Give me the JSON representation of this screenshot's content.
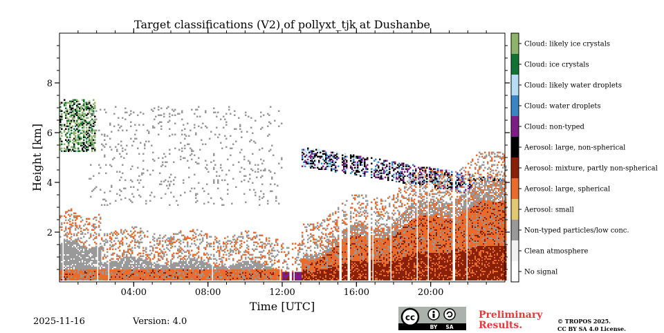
{
  "chart_data": {
    "type": "heatmap",
    "title": "Target classifications (V2) of pollyxt_tjk at Dushanbe",
    "xlabel": "Time [UTC]",
    "ylabel": "Height [km]",
    "xlim_hours": [
      0,
      24
    ],
    "ylim_km": [
      0,
      10
    ],
    "x_ticks": [
      {
        "hour": 4,
        "label": "04:00"
      },
      {
        "hour": 8,
        "label": "08:00"
      },
      {
        "hour": 12,
        "label": "12:00"
      },
      {
        "hour": 16,
        "label": "16:00"
      },
      {
        "hour": 20,
        "label": "20:00"
      }
    ],
    "y_ticks": [
      {
        "km": 2,
        "label": "2"
      },
      {
        "km": 4,
        "label": "4"
      },
      {
        "km": 6,
        "label": "6"
      },
      {
        "km": 8,
        "label": "8"
      }
    ],
    "classes": [
      {
        "name": "No signal",
        "color": "#ffffff"
      },
      {
        "name": "Clean atmosphere",
        "color": "#f2f2f2"
      },
      {
        "name": "Non-typed particles/low conc.",
        "color": "#999999"
      },
      {
        "name": "Aerosol: small",
        "color": "#e3c873"
      },
      {
        "name": "Aerosol: large, spherical",
        "color": "#ea6c2d"
      },
      {
        "name": "Aerosol: mixture, partly non-spherical",
        "color": "#8b2008"
      },
      {
        "name": "Aerosol: large, non-spherical",
        "color": "#000000"
      },
      {
        "name": "Cloud: non-typed",
        "color": "#7b1f86"
      },
      {
        "name": "Cloud: water droplets",
        "color": "#3a85c6"
      },
      {
        "name": "Cloud: likely water droplets",
        "color": "#b7dcf5"
      },
      {
        "name": "Cloud: ice crystals",
        "color": "#127434"
      },
      {
        "name": "Cloud: likely ice crystals",
        "color": "#8db46a"
      }
    ]
  },
  "footer": {
    "date": "2025-11-16",
    "version": "Version: 4.0",
    "cc_label": "cc",
    "by_label": "BY",
    "sa_label": "SA",
    "preliminary_line1": "Preliminary",
    "preliminary_line2": "Results.",
    "copyright_line1": "© TROPOS 2025.",
    "copyright_line2": "CC BY SA 4.0 License."
  }
}
